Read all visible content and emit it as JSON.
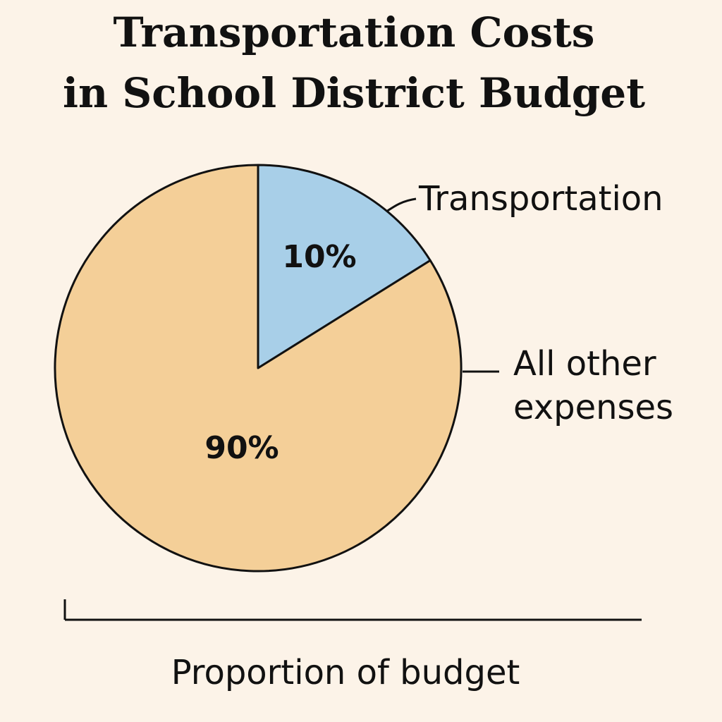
{
  "chart_data": {
    "type": "pie",
    "title_lines": [
      "Transportation Costs",
      "in School District Budget"
    ],
    "xlabel": "Proportion of budget",
    "start_angle_deg": 0,
    "direction": "clockwise",
    "slices": [
      {
        "name_lines": [
          "Transportation"
        ],
        "value": 10,
        "value_label": "10%",
        "color": "#a8cfe8"
      },
      {
        "name_lines": [
          "All other",
          "expenses"
        ],
        "value": 90,
        "value_label": "90%",
        "color": "#f4cf98"
      }
    ],
    "outline_color": "#111111",
    "background_color": "#fcf3e8"
  }
}
